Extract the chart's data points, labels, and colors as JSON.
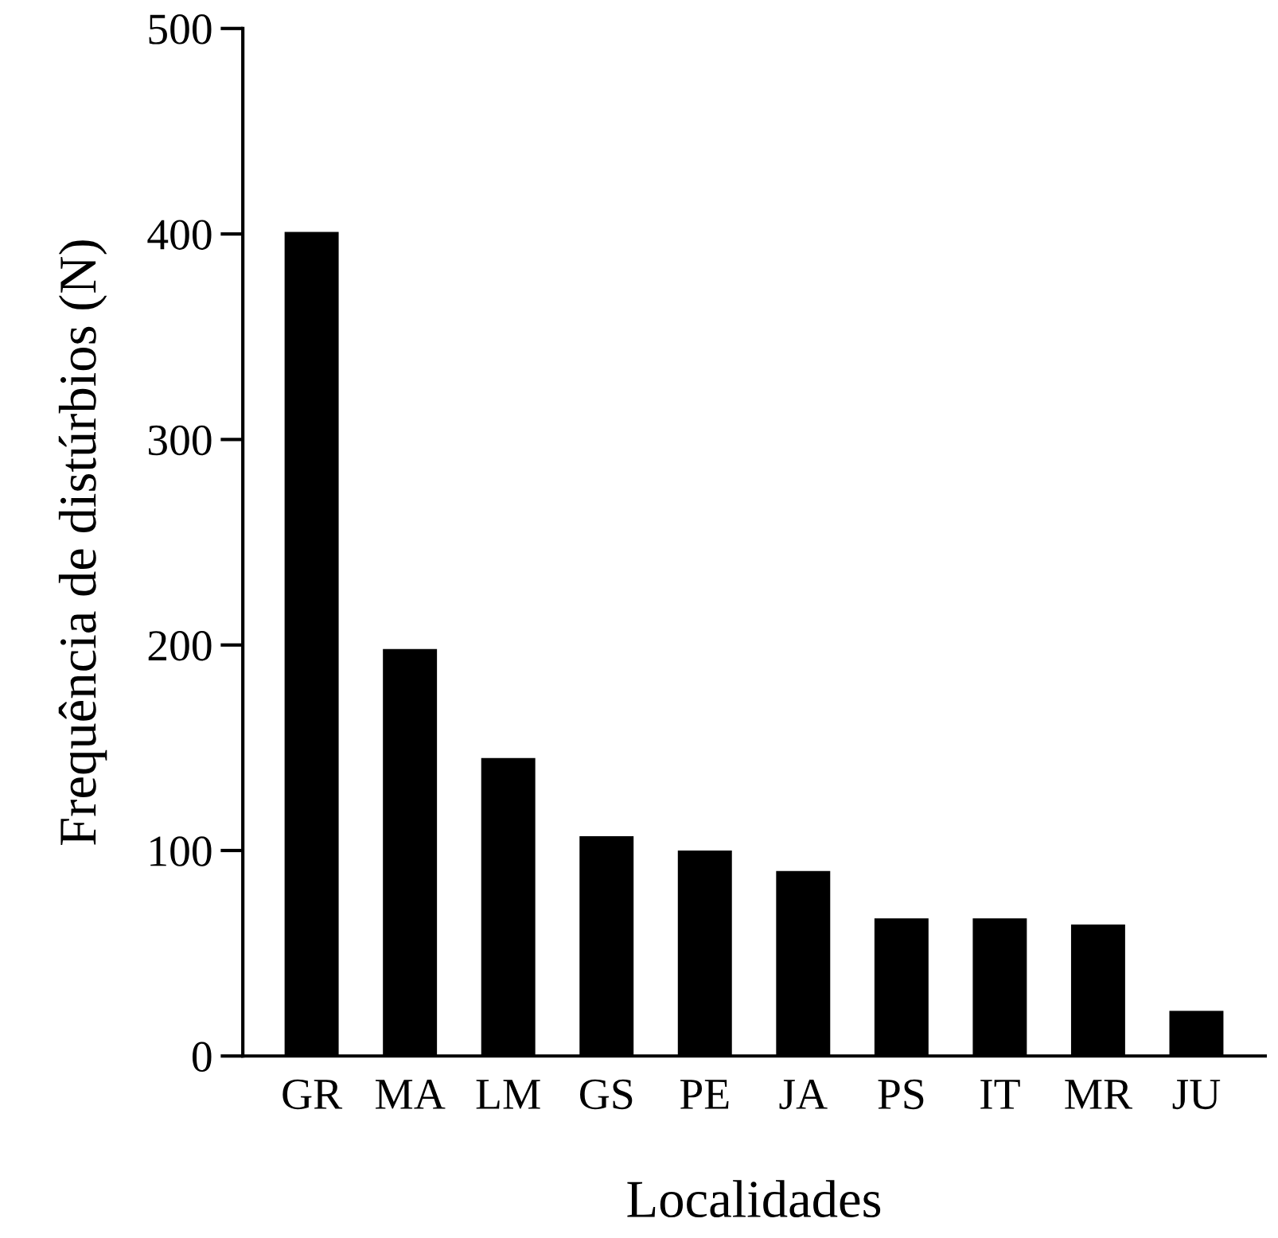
{
  "chart_data": {
    "type": "bar",
    "xlabel": "Localidades",
    "ylabel": "Frequência de distúrbios (N)",
    "categories": [
      "GR",
      "MA",
      "LM",
      "GS",
      "PE",
      "JA",
      "PS",
      "IT",
      "MR",
      "JU"
    ],
    "values": [
      401,
      198,
      145,
      107,
      100,
      90,
      67,
      67,
      64,
      22
    ],
    "color": "#000000",
    "ylim": [
      0,
      500
    ],
    "yticks": [
      0,
      100,
      200,
      300,
      400,
      500
    ],
    "grid": false,
    "legend": false
  }
}
